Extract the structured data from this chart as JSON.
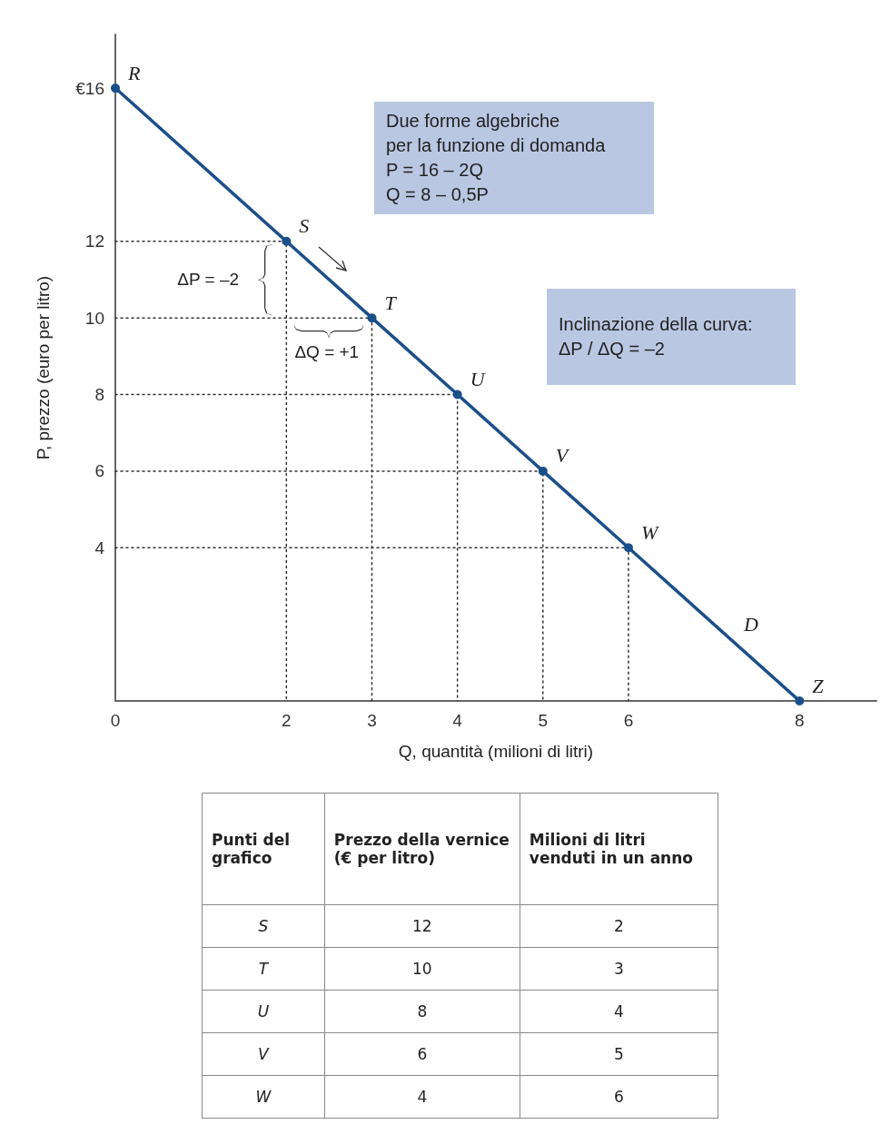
{
  "chart_data": [
    {
      "type": "line",
      "xlabel": "Q, quantità (milioni di litri)",
      "ylabel": "P, prezzo (euro per litro)",
      "xlim": [
        0,
        8.9
      ],
      "ylim": [
        0,
        17.4
      ],
      "xticks": [
        0,
        2,
        3,
        4,
        5,
        6,
        8
      ],
      "yticks": [
        4,
        6,
        8,
        10,
        12,
        {
          "value": 16,
          "label": "€16"
        }
      ],
      "grid": false,
      "series": [
        {
          "color": "#1b4f8a",
          "x": [
            0,
            2,
            3,
            4,
            5,
            6,
            8
          ],
          "values": [
            16,
            12,
            10,
            8,
            6,
            4,
            0
          ],
          "marker": "circle",
          "line_style": "solid"
        },
        {
          "color": "#333333",
          "x": [
            0,
            2,
            2
          ],
          "values": [
            12,
            12,
            0
          ],
          "marker": "none",
          "line_style": "dotted"
        },
        {
          "color": "#333333",
          "x": [
            0,
            3,
            3
          ],
          "values": [
            10,
            10,
            0
          ],
          "marker": "none",
          "line_style": "dotted"
        },
        {
          "color": "#333333",
          "x": [
            0,
            4,
            4
          ],
          "values": [
            8,
            8,
            0
          ],
          "marker": "none",
          "line_style": "dotted"
        },
        {
          "color": "#333333",
          "x": [
            0,
            5,
            5
          ],
          "values": [
            6,
            6,
            0
          ],
          "marker": "none",
          "line_style": "dotted"
        },
        {
          "color": "#333333",
          "x": [
            0,
            6,
            6
          ],
          "values": [
            4,
            4,
            0
          ],
          "marker": "none",
          "line_style": "dotted"
        }
      ],
      "annotations": [
        "Due forme algebriche\nper la funzione di domanda\nP = 16 – 2Q\nQ = 8 – 0,5P",
        "Inclinazione della curva:\nΔP / ΔQ = –2",
        {
          "text": "R",
          "x": 0,
          "y": 16
        },
        {
          "text": "S",
          "x": 2,
          "y": 12
        },
        {
          "text": "T",
          "x": 3,
          "y": 10
        },
        {
          "text": "U",
          "x": 4,
          "y": 8
        },
        {
          "text": "V",
          "x": 5,
          "y": 6
        },
        {
          "text": "W",
          "x": 6,
          "y": 4
        },
        {
          "text": "Z",
          "x": 8,
          "y": 0
        },
        {
          "text": "D",
          "x": 7.2,
          "y": 1.6
        },
        {
          "text": "ΔP = –2",
          "x": 2,
          "y": 11
        },
        {
          "text": "ΔQ = +1",
          "x": 2.5,
          "y": 10
        }
      ]
    },
    {
      "type": "other",
      "xlabel": "Punti del grafico",
      "categories": [
        "S",
        "T",
        "U",
        "V",
        "W"
      ],
      "data_labels": true,
      "series": [
        {
          "name": "Prezzo della vernice (€ per litro)",
          "values": [
            12,
            10,
            8,
            6,
            4
          ]
        },
        {
          "name": "Milioni di litri venduti in un anno",
          "values": [
            2,
            3,
            4,
            5,
            6
          ]
        }
      ]
    }
  ]
}
